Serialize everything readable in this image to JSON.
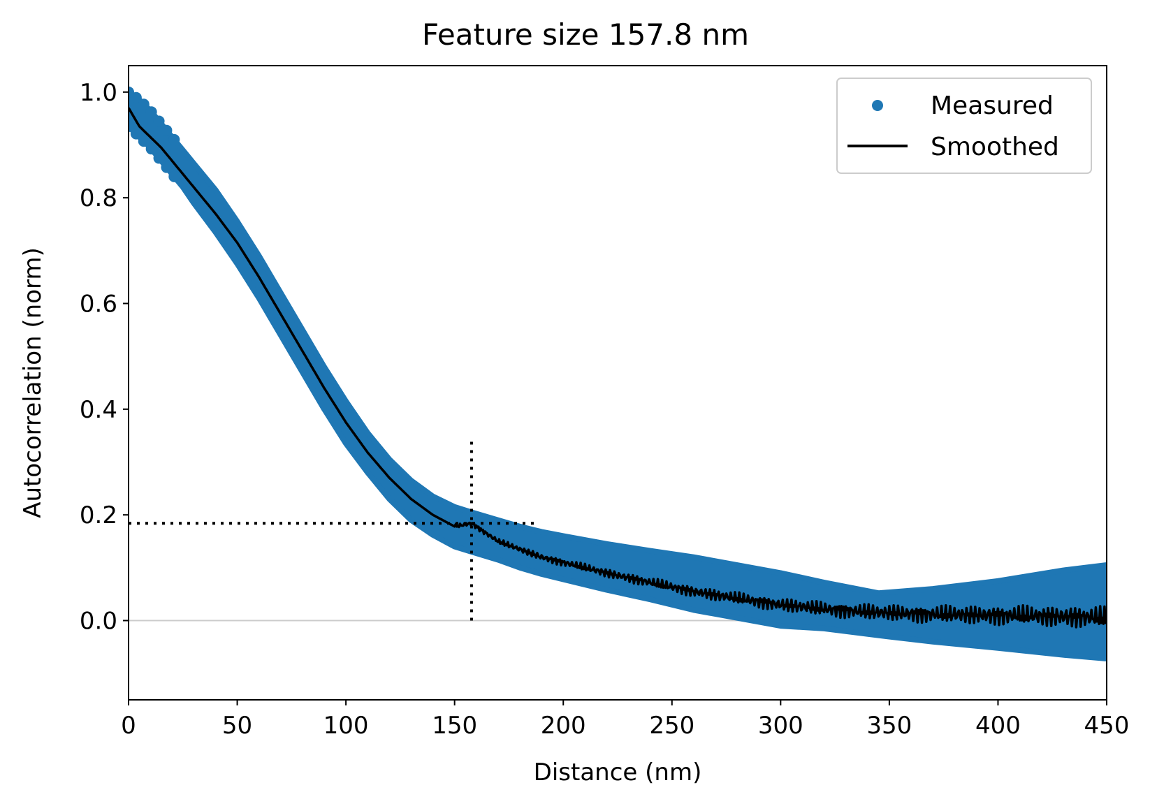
{
  "chart_data": {
    "type": "scatter",
    "title": "Feature size 157.8 nm",
    "xlabel": "Distance (nm)",
    "ylabel": "Autocorrelation (norm)",
    "xlim": [
      0,
      450
    ],
    "ylim": [
      -0.15,
      1.05
    ],
    "xticks": [
      0,
      50,
      100,
      150,
      200,
      250,
      300,
      350,
      400,
      450
    ],
    "xtick_labels": [
      "0",
      "50",
      "100",
      "150",
      "200",
      "250",
      "300",
      "350",
      "400",
      "450"
    ],
    "yticks": [
      0.0,
      0.2,
      0.4,
      0.6,
      0.8,
      1.0
    ],
    "ytick_labels": [
      "0.0",
      "0.2",
      "0.4",
      "0.6",
      "0.8",
      "1.0"
    ],
    "legend": {
      "position": "top-right",
      "entries": [
        {
          "label": "Measured",
          "kind": "marker",
          "color": "#1f77b4"
        },
        {
          "label": "Smoothed",
          "kind": "line",
          "color": "#000000"
        }
      ]
    },
    "colors": {
      "measured": "#1f77b4",
      "smoothed": "#000000",
      "zero_line": "#cccccc",
      "marker_lines": "#000000"
    },
    "feature_size": 157.8,
    "feature_threshold": 0.184,
    "horizontal_marker": {
      "y": 0.184,
      "x_range": [
        0,
        187
      ]
    },
    "vertical_marker": {
      "x": 157.8,
      "y_range": [
        0,
        0.34
      ]
    },
    "zero_line_y": 0.0,
    "series": [
      {
        "name": "Measured",
        "style": "scatter-band",
        "x": [
          0,
          5,
          10,
          15,
          20,
          25,
          30,
          40,
          50,
          60,
          70,
          80,
          90,
          100,
          110,
          120,
          130,
          140,
          150,
          157.8,
          170,
          180,
          190,
          200,
          220,
          240,
          260,
          280,
          300,
          320,
          345,
          370,
          400,
          430,
          450
        ],
        "upper": [
          1.0,
          0.985,
          0.965,
          0.94,
          0.915,
          0.89,
          0.865,
          0.815,
          0.755,
          0.69,
          0.62,
          0.55,
          0.48,
          0.415,
          0.355,
          0.305,
          0.265,
          0.235,
          0.215,
          0.205,
          0.19,
          0.178,
          0.168,
          0.16,
          0.145,
          0.132,
          0.12,
          0.105,
          0.09,
          0.072,
          0.052,
          0.06,
          0.075,
          0.095,
          0.105
        ],
        "lower": [
          0.935,
          0.915,
          0.895,
          0.87,
          0.845,
          0.82,
          0.79,
          0.735,
          0.675,
          0.61,
          0.54,
          0.47,
          0.4,
          0.335,
          0.28,
          0.23,
          0.19,
          0.162,
          0.14,
          0.13,
          0.115,
          0.1,
          0.088,
          0.078,
          0.058,
          0.04,
          0.02,
          0.005,
          -0.01,
          -0.015,
          -0.028,
          -0.04,
          -0.052,
          -0.065,
          -0.072
        ]
      },
      {
        "name": "Smoothed",
        "style": "line",
        "x": [
          0,
          5,
          10,
          15,
          20,
          25,
          30,
          40,
          50,
          60,
          70,
          80,
          90,
          100,
          110,
          120,
          130,
          140,
          150,
          157.8,
          170,
          180,
          190,
          200,
          220,
          240,
          260,
          280,
          300,
          320,
          345,
          370,
          400,
          430,
          450
        ],
        "values": [
          0.97,
          0.935,
          0.915,
          0.895,
          0.87,
          0.845,
          0.82,
          0.77,
          0.715,
          0.65,
          0.58,
          0.51,
          0.44,
          0.375,
          0.318,
          0.27,
          0.23,
          0.2,
          0.178,
          0.184,
          0.15,
          0.135,
          0.12,
          0.11,
          0.09,
          0.072,
          0.055,
          0.042,
          0.03,
          0.022,
          0.015,
          0.012,
          0.01,
          0.008,
          0.005
        ]
      }
    ]
  }
}
